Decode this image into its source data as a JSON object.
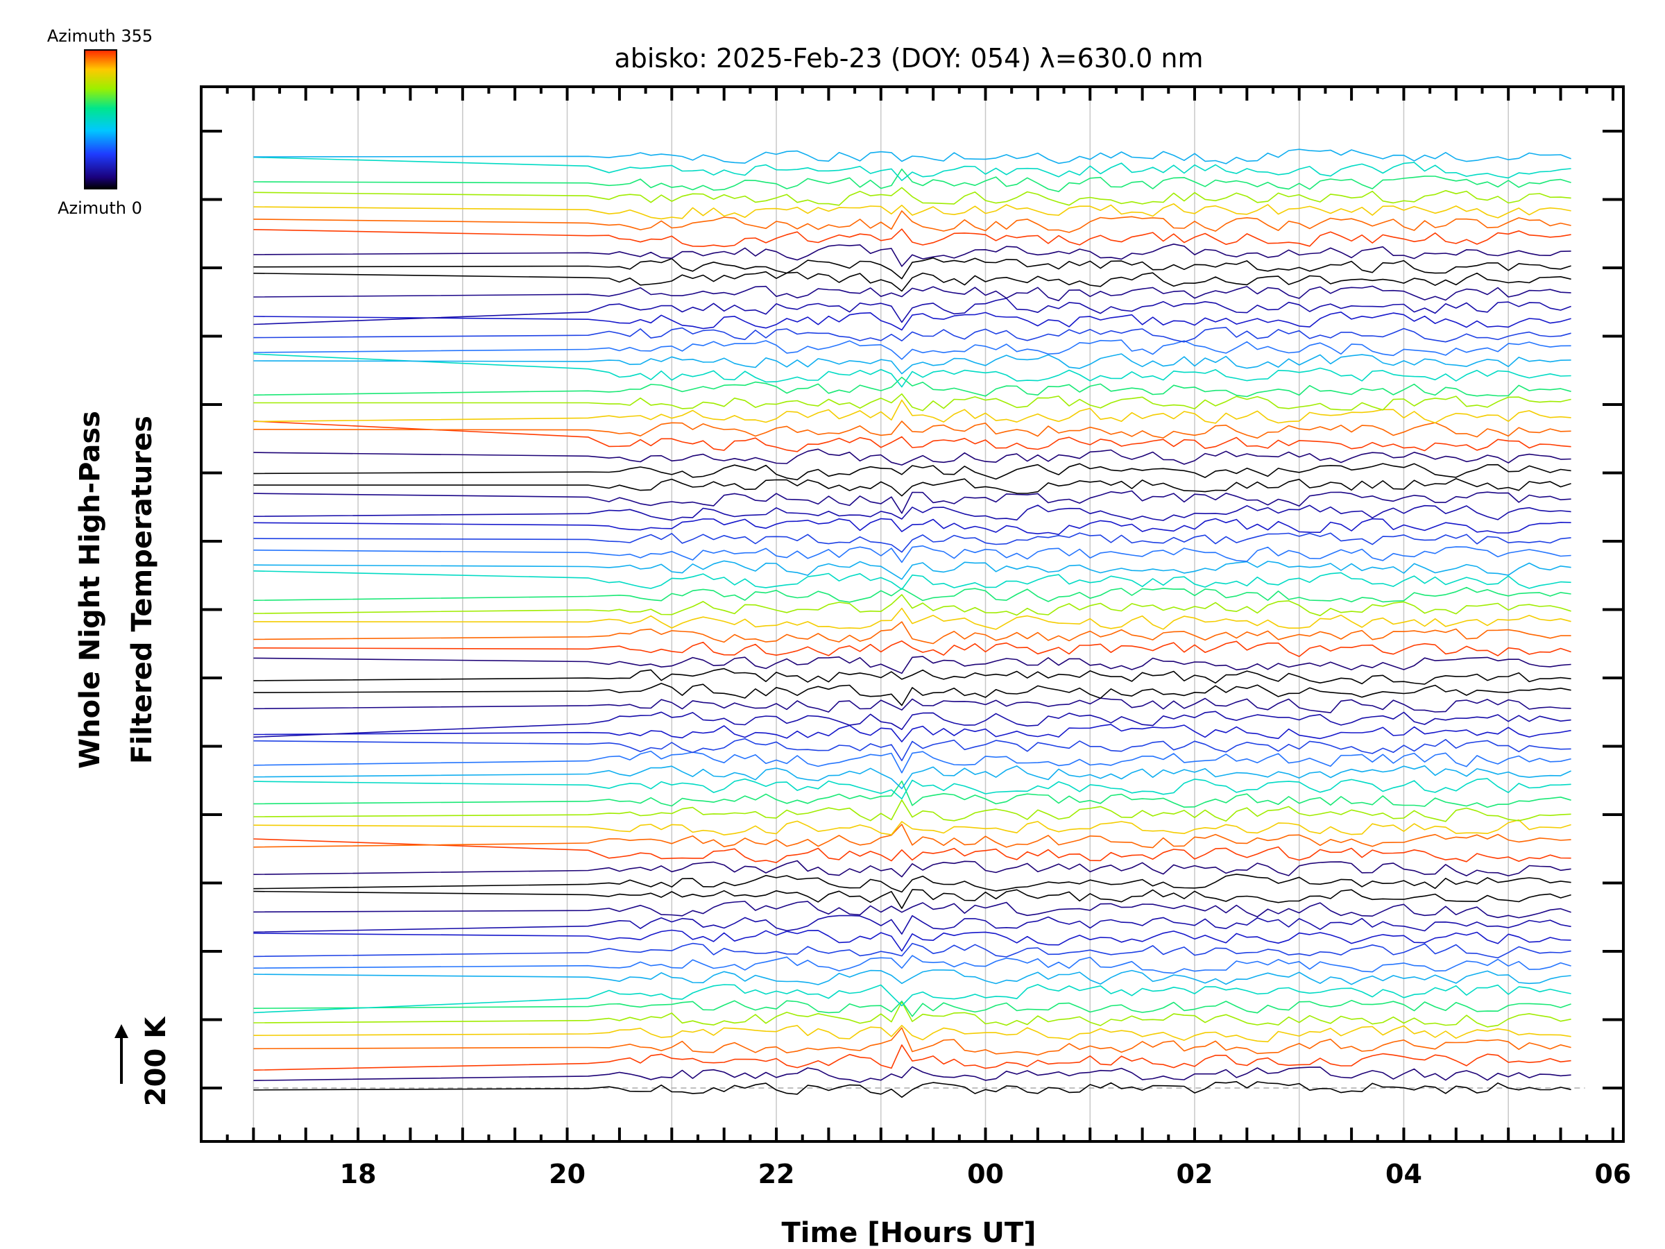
{
  "chart_data": {
    "type": "line",
    "title": "abisko: 2025-Feb-23 (DOY: 054) λ=630.0 nm",
    "xlabel": "Time [Hours UT]",
    "ylabel_line1": "Whole Night High-Pass",
    "ylabel_line2": "Filtered Temperatures",
    "scale_label": "200 K",
    "x_ticks": [
      {
        "hour": 18,
        "label": "18"
      },
      {
        "hour": 20,
        "label": "20"
      },
      {
        "hour": 22,
        "label": "22"
      },
      {
        "hour": 24,
        "label": "00"
      },
      {
        "hour": 26,
        "label": "02"
      },
      {
        "hour": 28,
        "label": "04"
      },
      {
        "hour": 30,
        "label": "06"
      }
    ],
    "xlim": [
      16.5,
      30.1
    ],
    "data_start_hour": 17.0,
    "active_start_hour": 20.4,
    "data_end_hour": 29.6,
    "spike_hour": 23.2,
    "series_count": 69,
    "series_spacing_K": 48,
    "colorbar": {
      "top_label": "Azimuth  355",
      "bottom_label": "Azimuth  0",
      "min_azimuth": 0,
      "max_azimuth": 355
    },
    "azimuth_pattern": [
      0,
      5,
      355,
      340,
      300,
      260,
      220,
      180,
      140,
      110,
      80,
      55,
      35,
      15,
      0
    ],
    "colors": {
      "axis": "#000000",
      "grid": "#c8c8c8",
      "baseline": "#aaaaaa"
    }
  }
}
